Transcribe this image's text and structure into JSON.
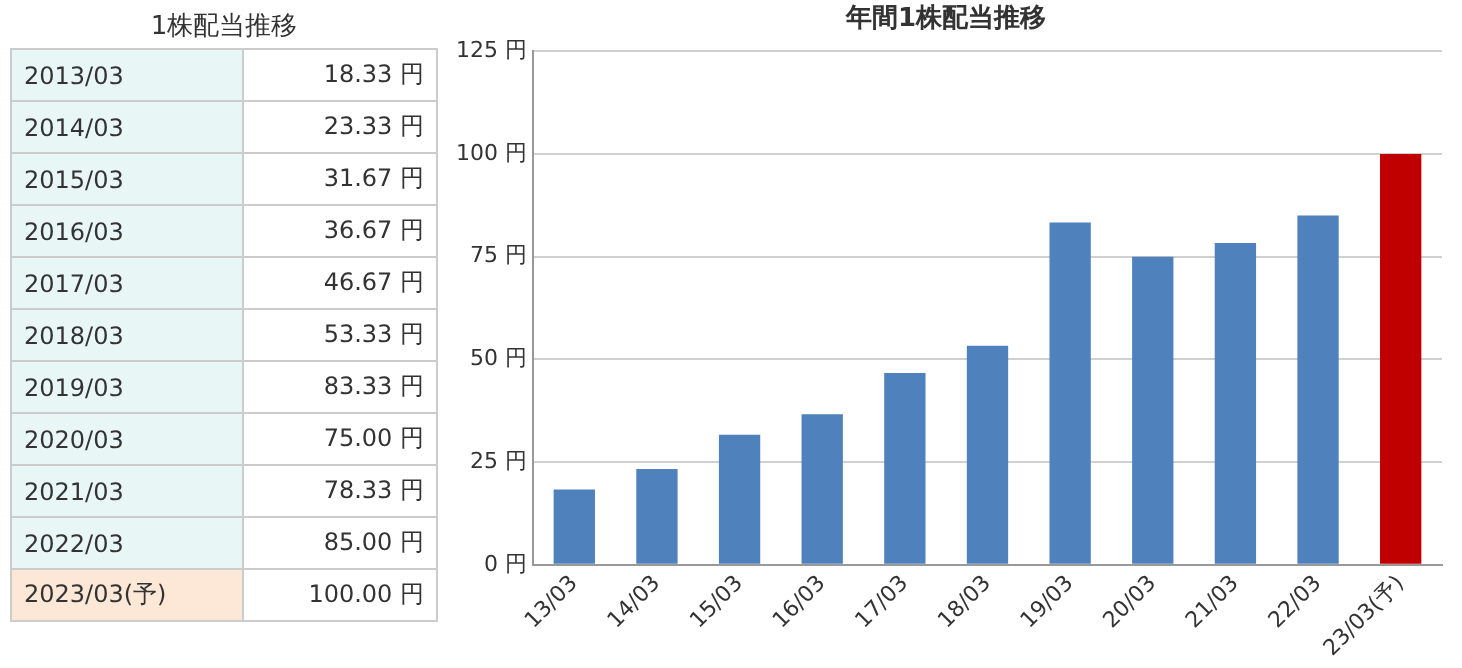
{
  "chart_data": [
    {
      "type": "other",
      "title": "1株配当推移",
      "categories": [
        "2013/03",
        "2014/03",
        "2015/03",
        "2016/03",
        "2017/03",
        "2018/03",
        "2019/03",
        "2020/03",
        "2021/03",
        "2022/03",
        "2023/03(予)"
      ],
      "value_labels": [
        "18.33 円",
        "23.33 円",
        "31.67 円",
        "36.67 円",
        "46.67 円",
        "53.33 円",
        "83.33 円",
        "75.00 円",
        "78.33 円",
        "85.00 円",
        "100.00 円"
      ]
    },
    {
      "type": "bar",
      "title": "年間1株配当推移",
      "categories": [
        "13/03",
        "14/03",
        "15/03",
        "16/03",
        "17/03",
        "18/03",
        "19/03",
        "20/03",
        "21/03",
        "22/03",
        "23/03(予)"
      ],
      "values": [
        18.33,
        23.33,
        31.67,
        36.67,
        46.67,
        53.33,
        83.33,
        75.0,
        78.33,
        85.0,
        100.0
      ],
      "colors": [
        "#4f81bd",
        "#4f81bd",
        "#4f81bd",
        "#4f81bd",
        "#4f81bd",
        "#4f81bd",
        "#4f81bd",
        "#4f81bd",
        "#4f81bd",
        "#4f81bd",
        "#c00000"
      ],
      "ylim": [
        0,
        125
      ],
      "yticks": [
        {
          "value": 0,
          "label": "0 円"
        },
        {
          "value": 25,
          "label": "25 円"
        },
        {
          "value": 50,
          "label": "50 円"
        },
        {
          "value": 75,
          "label": "75 円"
        },
        {
          "value": 100,
          "label": "100 円"
        },
        {
          "value": 125,
          "label": "125 円"
        }
      ],
      "grid": "y",
      "legend": false
    }
  ]
}
